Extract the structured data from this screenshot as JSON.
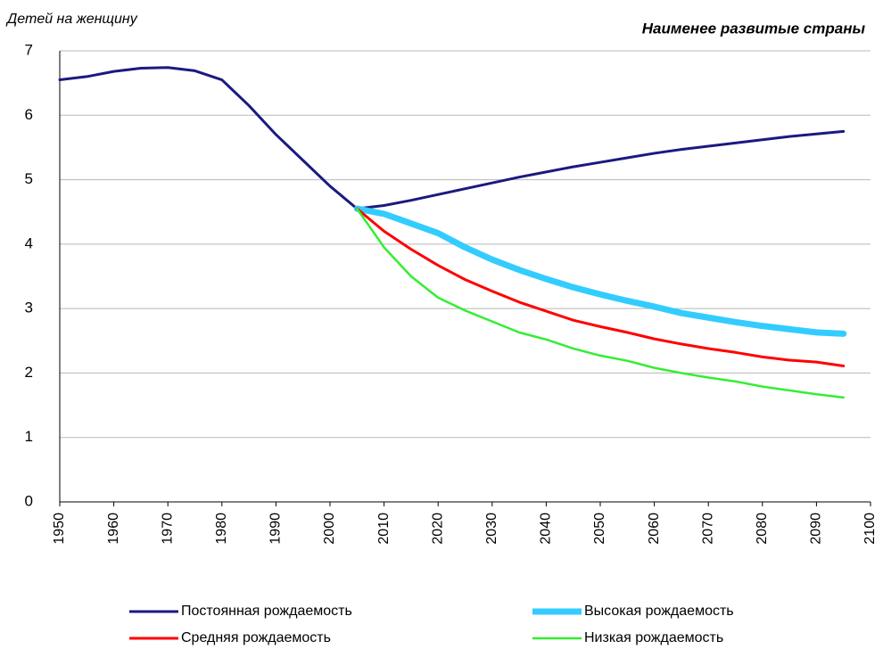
{
  "chart_data": {
    "type": "line",
    "title": "Наименее развитые страны",
    "y_label": "Детей на женщину",
    "x": [
      1950,
      1955,
      1960,
      1965,
      1970,
      1975,
      1980,
      1985,
      1990,
      1995,
      2000,
      2005,
      2010,
      2015,
      2020,
      2025,
      2030,
      2035,
      2040,
      2045,
      2050,
      2055,
      2060,
      2065,
      2070,
      2075,
      2080,
      2085,
      2090,
      2095
    ],
    "series": [
      {
        "name": "Постоянная рождаемость",
        "color": "#1a1a80",
        "values": [
          6.55,
          6.6,
          6.68,
          6.73,
          6.74,
          6.69,
          6.55,
          6.15,
          5.7,
          5.3,
          4.9,
          4.55,
          4.6,
          4.68,
          4.77,
          4.86,
          4.95,
          5.04,
          5.12,
          5.2,
          5.27,
          5.34,
          5.41,
          5.47,
          5.52,
          5.57,
          5.62,
          5.67,
          5.71,
          5.75
        ]
      },
      {
        "name": "Высокая рождаемость",
        "color": "#33ccff",
        "values": [
          null,
          null,
          null,
          null,
          null,
          null,
          null,
          null,
          null,
          null,
          null,
          4.55,
          4.47,
          4.32,
          4.17,
          3.95,
          3.76,
          3.6,
          3.46,
          3.33,
          3.22,
          3.12,
          3.03,
          2.93,
          2.86,
          2.79,
          2.73,
          2.68,
          2.63,
          2.61
        ]
      },
      {
        "name": "Средняя рождаемость",
        "color": "#ff0000",
        "values": [
          null,
          null,
          null,
          null,
          null,
          null,
          null,
          null,
          null,
          null,
          null,
          4.55,
          4.2,
          3.92,
          3.67,
          3.45,
          3.27,
          3.1,
          2.96,
          2.82,
          2.72,
          2.63,
          2.53,
          2.45,
          2.38,
          2.32,
          2.25,
          2.2,
          2.17,
          2.11
        ]
      },
      {
        "name": "Низкая рождаемость",
        "color": "#33ee33",
        "values": [
          null,
          null,
          null,
          null,
          null,
          null,
          null,
          null,
          null,
          null,
          null,
          4.55,
          3.95,
          3.5,
          3.17,
          2.97,
          2.8,
          2.63,
          2.52,
          2.38,
          2.27,
          2.19,
          2.08,
          2.0,
          1.93,
          1.87,
          1.79,
          1.73,
          1.67,
          1.62
        ]
      }
    ],
    "xlim": [
      1950,
      2100
    ],
    "xticks": [
      1950,
      1960,
      1970,
      1980,
      1990,
      2000,
      2010,
      2020,
      2030,
      2040,
      2050,
      2060,
      2070,
      2080,
      2090,
      2100
    ],
    "ylim": [
      0,
      7
    ],
    "yticks": [
      0,
      1,
      2,
      3,
      4,
      5,
      6,
      7
    ],
    "grid": true,
    "legend": "bottom"
  }
}
